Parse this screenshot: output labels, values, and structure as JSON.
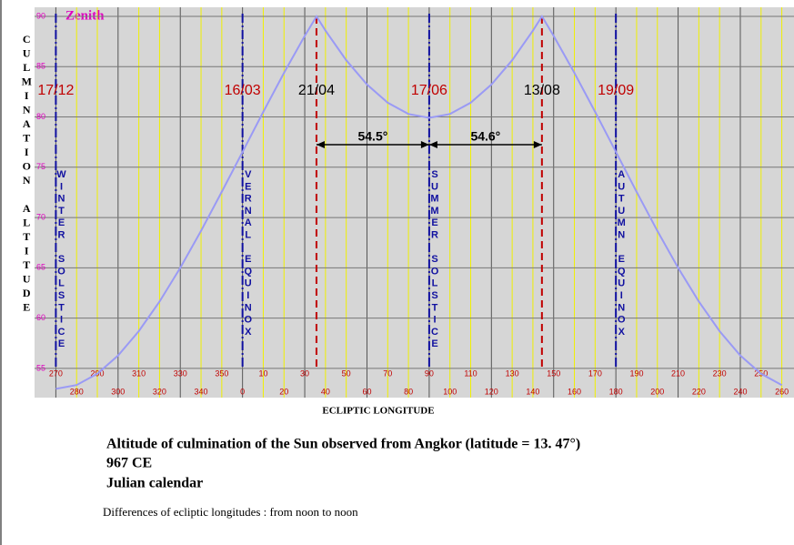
{
  "chart_data": {
    "type": "line",
    "annotation": "Zenith",
    "y_axis_label": "CULMINATION  ALTITUDE",
    "x_axis_label": "ECLIPTIC LONGITUDE",
    "title": "Altitude of culmination of the Sun observed from Angkor (latitude = 13. 47°)",
    "subtitle": [
      "967  CE",
      "Julian calendar"
    ],
    "note": "Differences of ecliptic longitudes : from noon to noon",
    "x": [
      270,
      280,
      290,
      300,
      310,
      320,
      330,
      340,
      350,
      360,
      370,
      380,
      390,
      395.65,
      400,
      410,
      420,
      430,
      440,
      450,
      460,
      470,
      480,
      490,
      500,
      504.35,
      510,
      520,
      530,
      540,
      550,
      560,
      570,
      580,
      590,
      600,
      610,
      620
    ],
    "series": [
      {
        "color": "#9a9af5",
        "values": [
          52.97,
          53.35,
          54.47,
          56.28,
          58.7,
          61.64,
          65.0,
          68.67,
          72.55,
          76.53,
          80.51,
          84.39,
          88.06,
          90,
          88.58,
          85.64,
          83.22,
          81.41,
          80.29,
          79.91,
          80.29,
          81.41,
          83.22,
          85.64,
          88.58,
          90,
          88.06,
          84.39,
          80.51,
          76.53,
          72.55,
          68.67,
          65.0,
          61.64,
          58.7,
          56.28,
          54.47,
          53.35
        ]
      }
    ],
    "xlim": [
      265,
      625
    ],
    "ylim": [
      52.1,
      90.9
    ],
    "xticks": [
      270,
      280,
      290,
      300,
      310,
      320,
      330,
      340,
      350,
      {
        "value": 360,
        "label": "0"
      },
      {
        "value": 370,
        "label": "10"
      },
      {
        "value": 380,
        "label": "20"
      },
      {
        "value": 390,
        "label": "30"
      },
      {
        "value": 400,
        "label": "40"
      },
      {
        "value": 410,
        "label": "50"
      },
      {
        "value": 420,
        "label": "60"
      },
      {
        "value": 430,
        "label": "70"
      },
      {
        "value": 440,
        "label": "80"
      },
      {
        "value": 450,
        "label": "90"
      },
      {
        "value": 460,
        "label": "100"
      },
      {
        "value": 470,
        "label": "110"
      },
      {
        "value": 480,
        "label": "120"
      },
      {
        "value": 490,
        "label": "130"
      },
      {
        "value": 500,
        "label": "140"
      },
      {
        "value": 510,
        "label": "150"
      },
      {
        "value": 520,
        "label": "160"
      },
      {
        "value": 530,
        "label": "170"
      },
      {
        "value": 540,
        "label": "180"
      },
      {
        "value": 550,
        "label": "190"
      },
      {
        "value": 560,
        "label": "200"
      },
      {
        "value": 570,
        "label": "210"
      },
      {
        "value": 580,
        "label": "220"
      },
      {
        "value": 590,
        "label": "230"
      },
      {
        "value": 600,
        "label": "240"
      },
      {
        "value": 610,
        "label": "250"
      },
      {
        "value": 620,
        "label": "260"
      }
    ],
    "yticks": [
      55,
      60,
      65,
      70,
      75,
      80,
      85,
      90
    ],
    "grid": true,
    "markers": [
      {
        "x": 270,
        "label": "WINTER SOLSTICE",
        "date": "17/12",
        "date_color": "#c00000"
      },
      {
        "x": 360,
        "label": "VERNAL EQUINOX",
        "date": "16/03",
        "date_color": "#c00000"
      },
      {
        "x": 450,
        "label": "SUMMER SOLSTICE",
        "date": "17/06",
        "date_color": "#c00000"
      },
      {
        "x": 540,
        "label": "AUTUMN EQUINOX",
        "date": "19/09",
        "date_color": "#c00000"
      }
    ],
    "peaks": [
      {
        "x": 395.65,
        "date": "21/04"
      },
      {
        "x": 504.35,
        "date": "13/08"
      }
    ],
    "arrows": [
      {
        "from": 395.65,
        "to": 450,
        "label": "54.5°"
      },
      {
        "from": 450,
        "to": 504.35,
        "label": "54.6°"
      }
    ]
  }
}
